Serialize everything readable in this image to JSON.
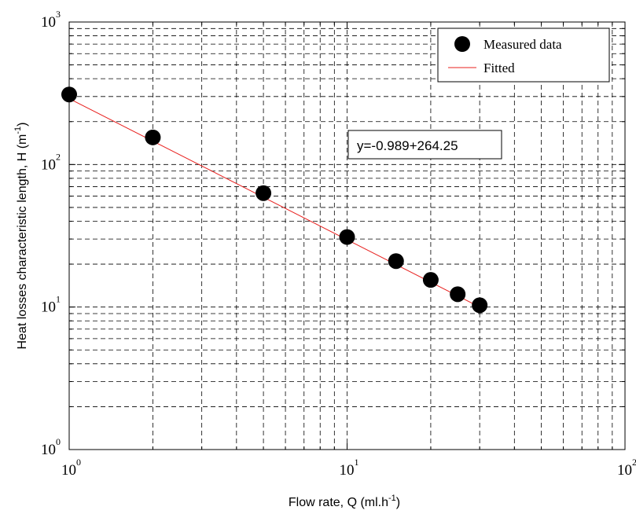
{
  "chart_data": {
    "type": "scatter",
    "scale": {
      "x": "log",
      "y": "log"
    },
    "xlim": [
      1,
      100
    ],
    "ylim": [
      1,
      1000
    ],
    "x_ticks": [
      {
        "base": "10",
        "exp": "0"
      },
      {
        "base": "10",
        "exp": "1"
      },
      {
        "base": "10",
        "exp": "2"
      }
    ],
    "y_ticks": [
      {
        "base": "10",
        "exp": "0"
      },
      {
        "base": "10",
        "exp": "1"
      },
      {
        "base": "10",
        "exp": "2"
      },
      {
        "base": "10",
        "exp": "3"
      }
    ],
    "xlabel": {
      "main": "Flow rate, Q (ml.h",
      "sup": "-1",
      "close": ")"
    },
    "ylabel": {
      "main": "Heat losses characteristic length, H (m",
      "sup": "-1",
      "close": ")"
    },
    "grid": true,
    "legend": {
      "placement": "top-right",
      "entries": [
        "Measured data",
        "Fitted"
      ]
    },
    "series": [
      {
        "name": "Measured data",
        "kind": "marker",
        "color": "#000000",
        "x": [
          1,
          2,
          5,
          10,
          15,
          20,
          25,
          30
        ],
        "y": [
          310,
          155,
          63,
          31,
          21,
          15.5,
          12.3,
          10.3
        ]
      },
      {
        "name": "Fitted",
        "kind": "line",
        "color": "#e8201e",
        "x": [
          1,
          30
        ],
        "y": [
          290,
          10
        ]
      }
    ],
    "annotation": "y=-0.989+264.25"
  }
}
